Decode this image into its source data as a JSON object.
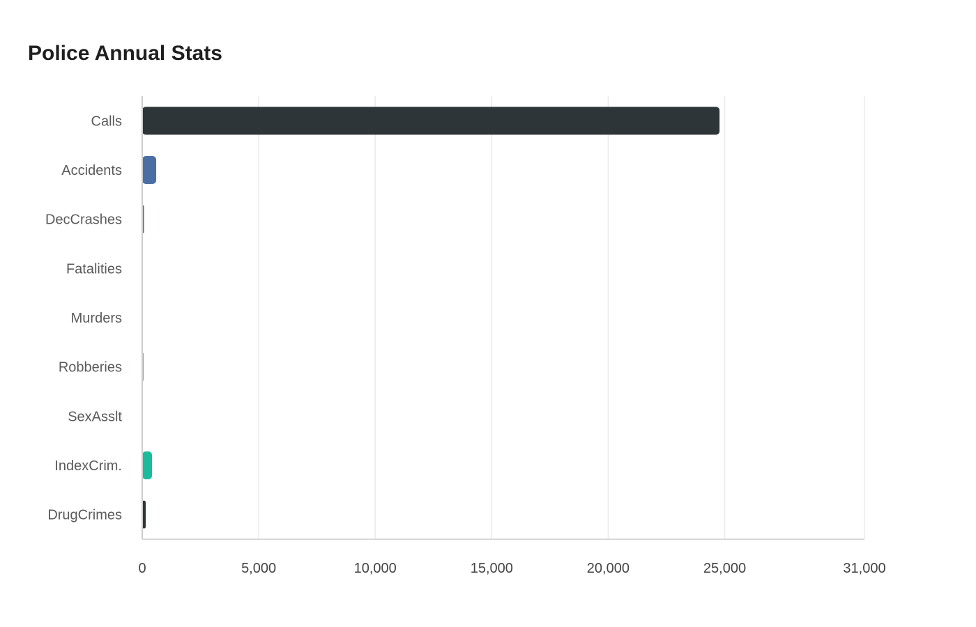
{
  "chart_data": {
    "type": "bar",
    "orientation": "horizontal",
    "title": "Police Annual Stats",
    "categories": [
      "Calls",
      "Accidents",
      "DecCrashes",
      "Fatalities",
      "Murders",
      "Robberies",
      "SexAsslt",
      "IndexCrim.",
      "DrugCrimes"
    ],
    "values": [
      24780,
      600,
      75,
      6,
      5,
      45,
      25,
      420,
      150
    ],
    "colors": [
      "#2e3538",
      "#4a6fa5",
      "#4a6fa5",
      "#4a6fa5",
      "#8b1a1a",
      "#8b1a1a",
      "#8b1a1a",
      "#1abc9c",
      "#2e3538"
    ],
    "xlim": [
      0,
      31000
    ],
    "xticks": [
      0,
      5000,
      10000,
      15000,
      20000,
      25000,
      31000
    ],
    "xtick_labels": [
      "0",
      "5,000",
      "10,000",
      "15,000",
      "20,000",
      "25,000",
      "31,000"
    ],
    "grid": true,
    "xlabel": "",
    "ylabel": ""
  }
}
